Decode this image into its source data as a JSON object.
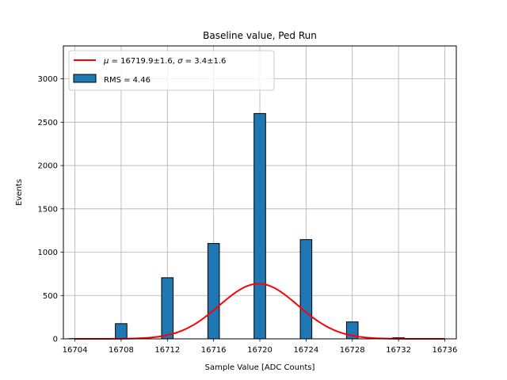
{
  "chart_data": {
    "type": "bar",
    "title": "Baseline value, Ped Run",
    "xlabel": "Sample Value [ADC Counts]",
    "ylabel": "Events",
    "xlim": [
      16703,
      16737
    ],
    "ylim": [
      0,
      3380
    ],
    "xticks": [
      16704,
      16708,
      16712,
      16716,
      16720,
      16724,
      16728,
      16732,
      16736
    ],
    "yticks": [
      0,
      500,
      1000,
      1500,
      2000,
      2500,
      3000
    ],
    "grid": true,
    "legend_position": "top-left",
    "histogram": {
      "name": "RMS = 4.46",
      "bin_width": 1,
      "bins": [
        {
          "x": 16704,
          "value": 3
        },
        {
          "x": 16708,
          "value": 175
        },
        {
          "x": 16712,
          "value": 705
        },
        {
          "x": 16716,
          "value": 1100
        },
        {
          "x": 16720,
          "value": 2600
        },
        {
          "x": 16724,
          "value": 1145
        },
        {
          "x": 16728,
          "value": 195
        },
        {
          "x": 16732,
          "value": 12
        }
      ],
      "color": "#1f77b4",
      "edge_color": "#000000"
    },
    "fit": {
      "name": "$\\mu = 16719.9 \\pm 1.6$, $\\sigma = 3.4 \\pm 1.6$",
      "label_parts": [
        "μ",
        " = 16719.9±1.6, ",
        "σ",
        " = 3.4±1.6"
      ],
      "type": "gaussian",
      "mu": 16719.9,
      "sigma": 3.4,
      "amplitude": 636,
      "color": "#ff0000"
    }
  }
}
